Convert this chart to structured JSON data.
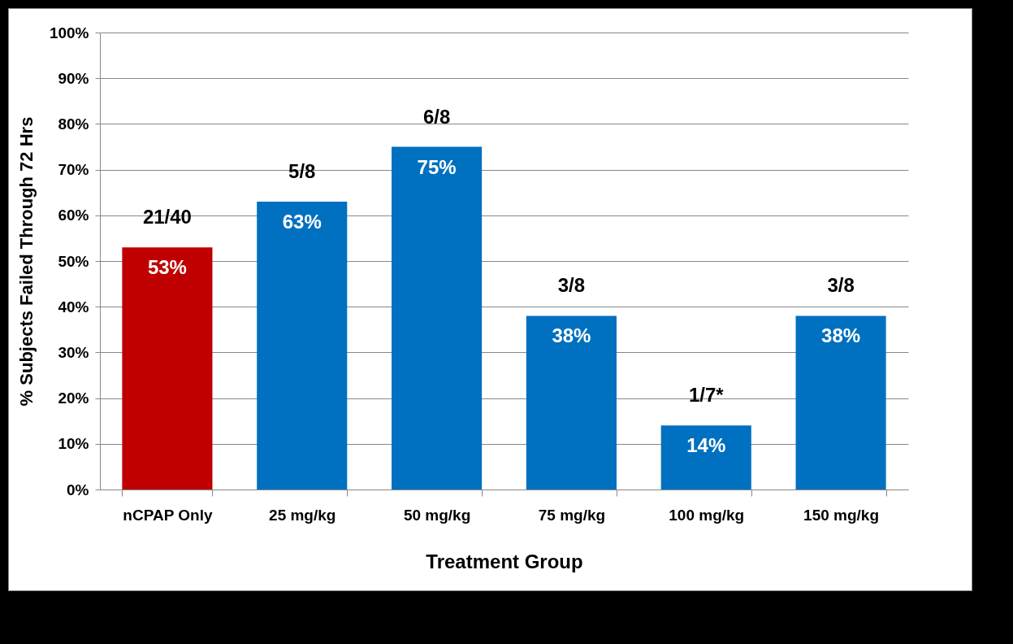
{
  "chart_data": {
    "type": "bar",
    "xlabel": "Treatment Group",
    "ylabel": "% Subjects Failed Through 72 Hrs",
    "categories": [
      "nCPAP Only",
      "25 mg/kg",
      "50 mg/kg",
      "75 mg/kg",
      "100 mg/kg",
      "150 mg/kg"
    ],
    "values": [
      53,
      63,
      75,
      38,
      14,
      38
    ],
    "colors": [
      "#c00000",
      "#0070c0",
      "#0070c0",
      "#0070c0",
      "#0070c0",
      "#0070c0"
    ],
    "value_labels": [
      "53%",
      "63%",
      "75%",
      "38%",
      "14%",
      "38%"
    ],
    "annotations": [
      {
        "text": "21/40",
        "x": "nCPAP Only",
        "y": 53
      },
      {
        "text": "5/8",
        "x": "25 mg/kg",
        "y": 63
      },
      {
        "text": "6/8",
        "x": "50 mg/kg",
        "y": 75
      },
      {
        "text": "3/8",
        "x": "75 mg/kg",
        "y": 38
      },
      {
        "text": "1/7*",
        "x": "100 mg/kg",
        "y": 14
      },
      {
        "text": "3/8",
        "x": "150 mg/kg",
        "y": 38
      }
    ],
    "ylim": [
      0,
      100
    ],
    "yticks": [
      {
        "value": 0,
        "label": "0%"
      },
      {
        "value": 10,
        "label": "10%"
      },
      {
        "value": 20,
        "label": "20%"
      },
      {
        "value": 30,
        "label": "30%"
      },
      {
        "value": 40,
        "label": "40%"
      },
      {
        "value": 50,
        "label": "50%"
      },
      {
        "value": 60,
        "label": "60%"
      },
      {
        "value": 70,
        "label": "70%"
      },
      {
        "value": 80,
        "label": "80%"
      },
      {
        "value": 90,
        "label": "90%"
      },
      {
        "value": 100,
        "label": "100%"
      }
    ],
    "grid": "y"
  }
}
